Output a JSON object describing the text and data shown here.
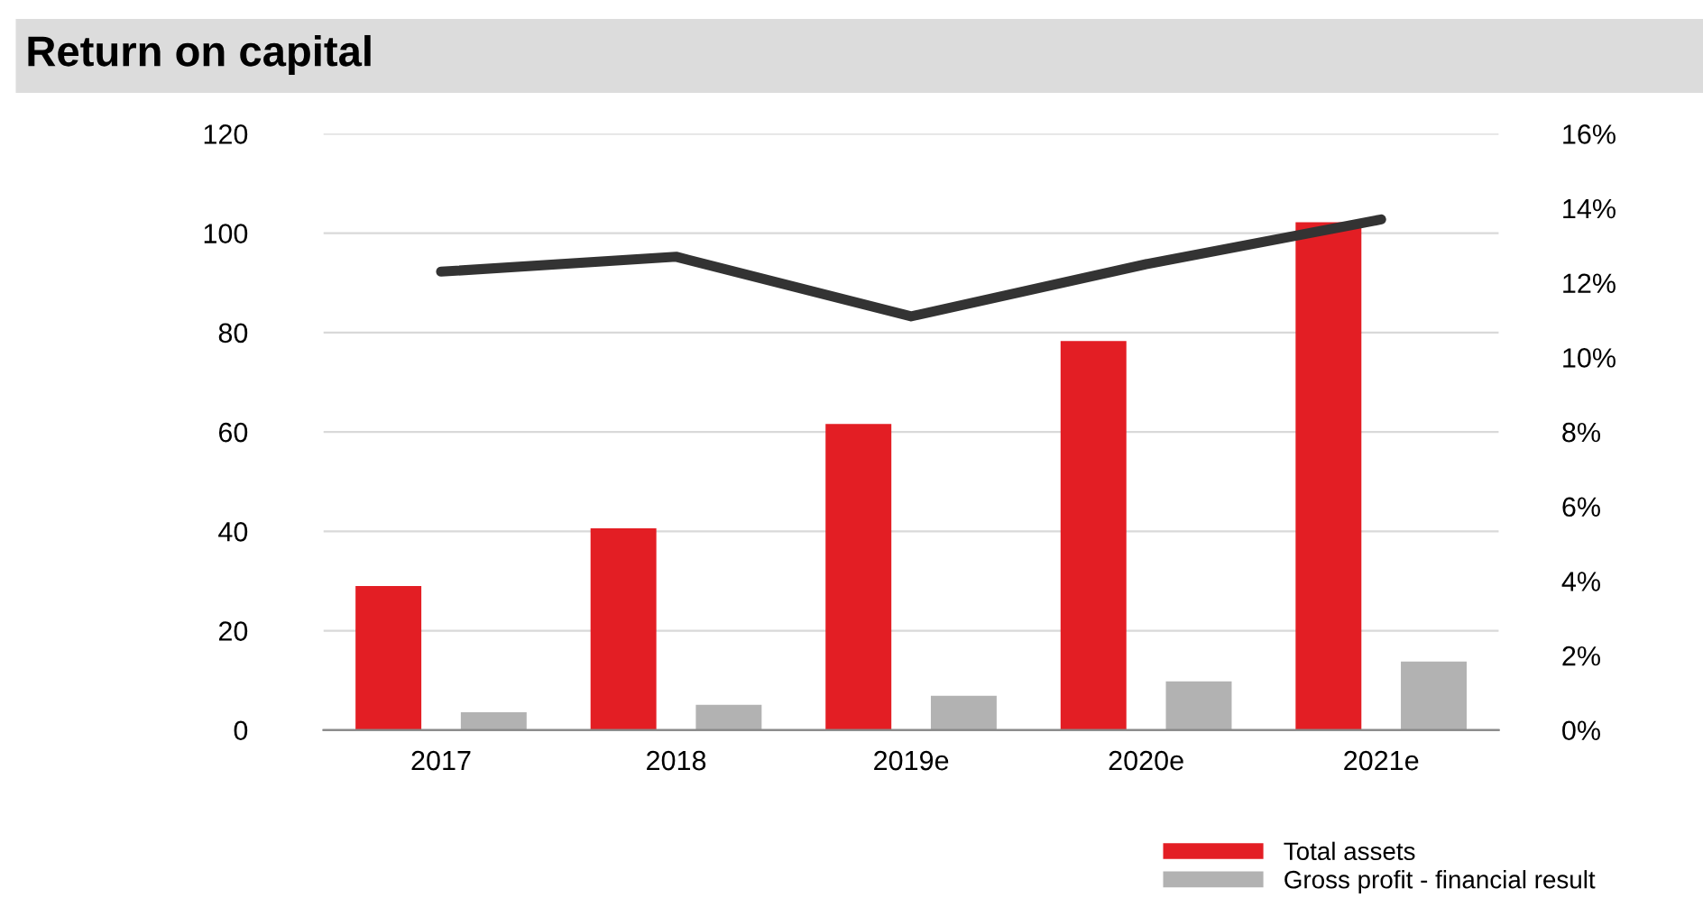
{
  "chart_data": {
    "type": "bar",
    "title": "Return on capital",
    "categories": [
      "2017",
      "2018",
      "2019e",
      "2020e",
      "2021e"
    ],
    "series": [
      {
        "name": "Total assets",
        "color": "#e31e24",
        "values": [
          29,
          40.6,
          61.6,
          78.3,
          102.2
        ]
      },
      {
        "name": "Gross profit - financial result",
        "color": "#b2b2b2",
        "values": [
          3.6,
          5.1,
          6.9,
          9.8,
          13.8
        ]
      },
      {
        "type": "line",
        "axis": "y2",
        "color": "#333333",
        "values": [
          12.3,
          12.7,
          11.1,
          12.5,
          13.7
        ]
      }
    ],
    "ylim": [
      0,
      120
    ],
    "yticks": [
      0,
      20,
      40,
      60,
      80,
      100,
      120
    ],
    "y2lim": [
      0,
      16
    ],
    "y2ticks": [
      {
        "value": 0,
        "label": "0%"
      },
      {
        "value": 2,
        "label": "2%"
      },
      {
        "value": 4,
        "label": "4%"
      },
      {
        "value": 6,
        "label": "6%"
      },
      {
        "value": 8,
        "label": "8%"
      },
      {
        "value": 10,
        "label": "10%"
      },
      {
        "value": 12,
        "label": "12%"
      },
      {
        "value": 14,
        "label": "14%"
      },
      {
        "value": 16,
        "label": "16%"
      }
    ],
    "grid": "y",
    "legend": "bottom right",
    "line_style": "solid",
    "marker": "none"
  }
}
